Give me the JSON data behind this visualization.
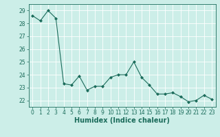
{
  "x": [
    0,
    1,
    2,
    3,
    4,
    5,
    6,
    7,
    8,
    9,
    10,
    11,
    12,
    13,
    14,
    15,
    16,
    17,
    18,
    19,
    20,
    21,
    22,
    23
  ],
  "y": [
    28.6,
    28.2,
    29.0,
    28.4,
    23.3,
    23.2,
    23.9,
    22.8,
    23.1,
    23.1,
    23.8,
    24.0,
    24.0,
    25.0,
    23.8,
    23.2,
    22.5,
    22.5,
    22.6,
    22.3,
    21.9,
    22.0,
    22.4,
    22.1
  ],
  "line_color": "#1a6b5a",
  "marker": "D",
  "marker_size": 2,
  "bg_color": "#cceee8",
  "grid_color": "#ffffff",
  "xlabel": "Humidex (Indice chaleur)",
  "ylim": [
    21.5,
    29.5
  ],
  "yticks": [
    22,
    23,
    24,
    25,
    26,
    27,
    28,
    29
  ],
  "xticks": [
    0,
    1,
    2,
    3,
    4,
    5,
    6,
    7,
    8,
    9,
    10,
    11,
    12,
    13,
    14,
    15,
    16,
    17,
    18,
    19,
    20,
    21,
    22,
    23
  ],
  "tick_fontsize": 5.5,
  "xlabel_fontsize": 7
}
